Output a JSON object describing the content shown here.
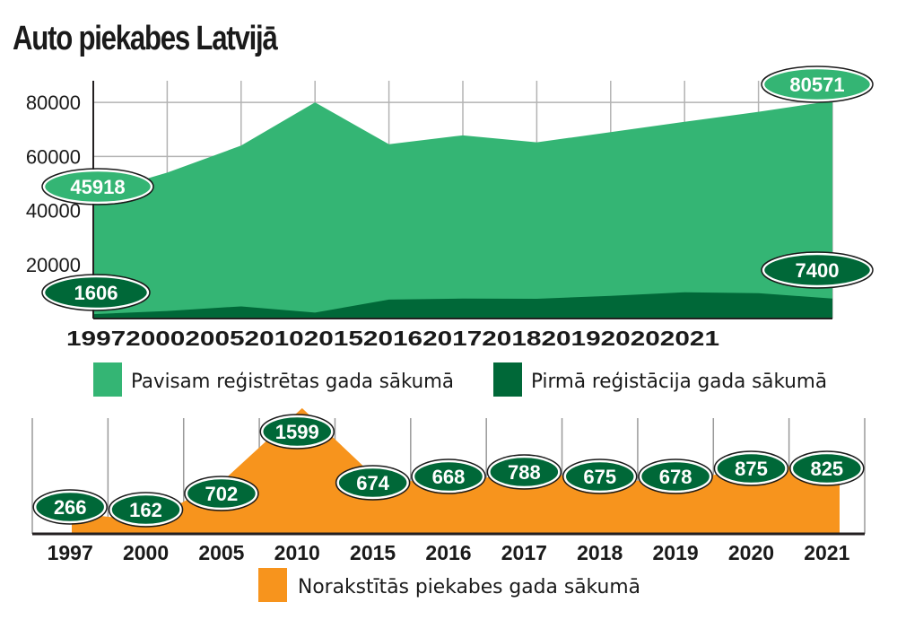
{
  "title": "Auto piekabes Latvijā",
  "colors": {
    "light_green": "#34b574",
    "dark_green": "#006838",
    "orange": "#f7941d",
    "grid": "#b3b3b3",
    "axis": "#231f20"
  },
  "chart_data": [
    {
      "type": "area",
      "categories": [
        "1997",
        "2000",
        "2005",
        "2010",
        "2015",
        "2016",
        "2017",
        "2018",
        "2019",
        "2020",
        "2021"
      ],
      "y_ticks": [
        20000,
        40000,
        60000,
        80000
      ],
      "ylim": [
        0,
        88000
      ],
      "grid": true,
      "legend_position": "bottom",
      "series": [
        {
          "name": "Pavisam reģistrētas gada sākumā",
          "values": [
            45918,
            54000,
            64000,
            80000,
            64500,
            67800,
            65200,
            69000,
            72800,
            76500,
            80571
          ]
        },
        {
          "name": "Pirmā reģistācija gada sākumā",
          "values": [
            1606,
            2800,
            4500,
            2200,
            7000,
            7400,
            7300,
            8400,
            9700,
            9400,
            7400
          ]
        }
      ],
      "callouts": {
        "total_first": "45918",
        "total_last": "80571",
        "first_reg_first": "1606",
        "first_reg_last": "7400"
      }
    },
    {
      "type": "area",
      "categories": [
        "1997",
        "2000",
        "2005",
        "2010",
        "2015",
        "2016",
        "2017",
        "2018",
        "2019",
        "2020",
        "2021"
      ],
      "ylim": [
        0,
        1700
      ],
      "grid": true,
      "legend_position": "bottom",
      "series": [
        {
          "name": "Norakstītās piekabes gada sākumā",
          "values": [
            266,
            162,
            702,
            1599,
            674,
            668,
            788,
            675,
            678,
            875,
            825
          ],
          "labels": [
            "266",
            "162",
            "702",
            "1599",
            "674",
            "668",
            "788",
            "675",
            "678",
            "875",
            "825"
          ]
        }
      ]
    }
  ]
}
